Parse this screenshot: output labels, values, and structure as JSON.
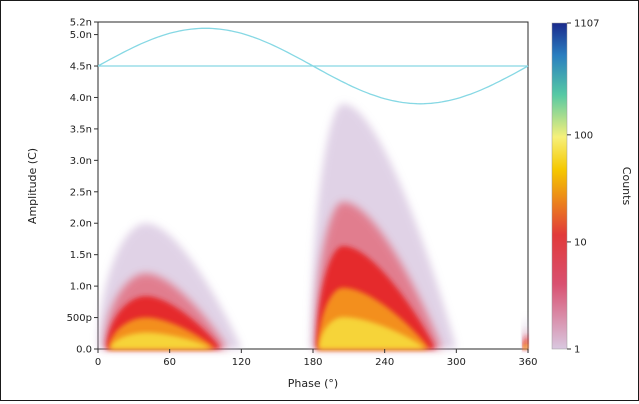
{
  "chart_data": {
    "type": "heatmap",
    "title": "",
    "xlabel": "Phase (°)",
    "ylabel": "Amplitude (C)",
    "x_ticks": [
      {
        "value": 0,
        "label": "0"
      },
      {
        "value": 60,
        "label": "60"
      },
      {
        "value": 120,
        "label": "120"
      },
      {
        "value": 180,
        "label": "180"
      },
      {
        "value": 240,
        "label": "240"
      },
      {
        "value": 300,
        "label": "300"
      },
      {
        "value": 360,
        "label": "360"
      }
    ],
    "xlim": [
      0,
      360
    ],
    "y_ticks": [
      {
        "value": 0.0,
        "label": "0.0"
      },
      {
        "value": 0.5,
        "label": "500p"
      },
      {
        "value": 1.0,
        "label": "1.0n"
      },
      {
        "value": 1.5,
        "label": "1.5n"
      },
      {
        "value": 2.0,
        "label": "2.0n"
      },
      {
        "value": 2.5,
        "label": "2.5n"
      },
      {
        "value": 3.0,
        "label": "3.0n"
      },
      {
        "value": 3.5,
        "label": "3.5n"
      },
      {
        "value": 4.0,
        "label": "4.0n"
      },
      {
        "value": 4.5,
        "label": "4.5n"
      },
      {
        "value": 5.0,
        "label": "5.0n"
      },
      {
        "value": 5.2,
        "label": "5.2n"
      }
    ],
    "ylim": [
      0,
      5.2
    ],
    "y_unit": "nC",
    "threshold_line": 4.5,
    "reference_sine": {
      "center": 4.5,
      "amplitude": 0.6
    },
    "clusters": [
      {
        "phase_start": 0,
        "phase_end": 120,
        "peak_phase": 40,
        "peak_amplitude": 2.0
      },
      {
        "phase_start": 178,
        "phase_end": 300,
        "peak_phase": 205,
        "peak_amplitude": 3.9
      },
      {
        "phase_start": 355,
        "phase_end": 360,
        "peak_phase": 360,
        "peak_amplitude": 0.5
      }
    ],
    "colorbar": {
      "label": "Counts",
      "scale": "log",
      "range": [
        1,
        1107
      ],
      "ticks": [
        {
          "value": 1,
          "label": "1"
        },
        {
          "value": 10,
          "label": "10"
        },
        {
          "value": 100,
          "label": "100"
        },
        {
          "value": 1107,
          "label": "1107"
        }
      ],
      "colors": [
        "#d9c8e0",
        "#e13a3a",
        "#f5c800",
        "#f6f07a",
        "#56c9a4",
        "#2a7fc0",
        "#1a2a8c"
      ]
    },
    "grid": false,
    "legend": "none"
  }
}
